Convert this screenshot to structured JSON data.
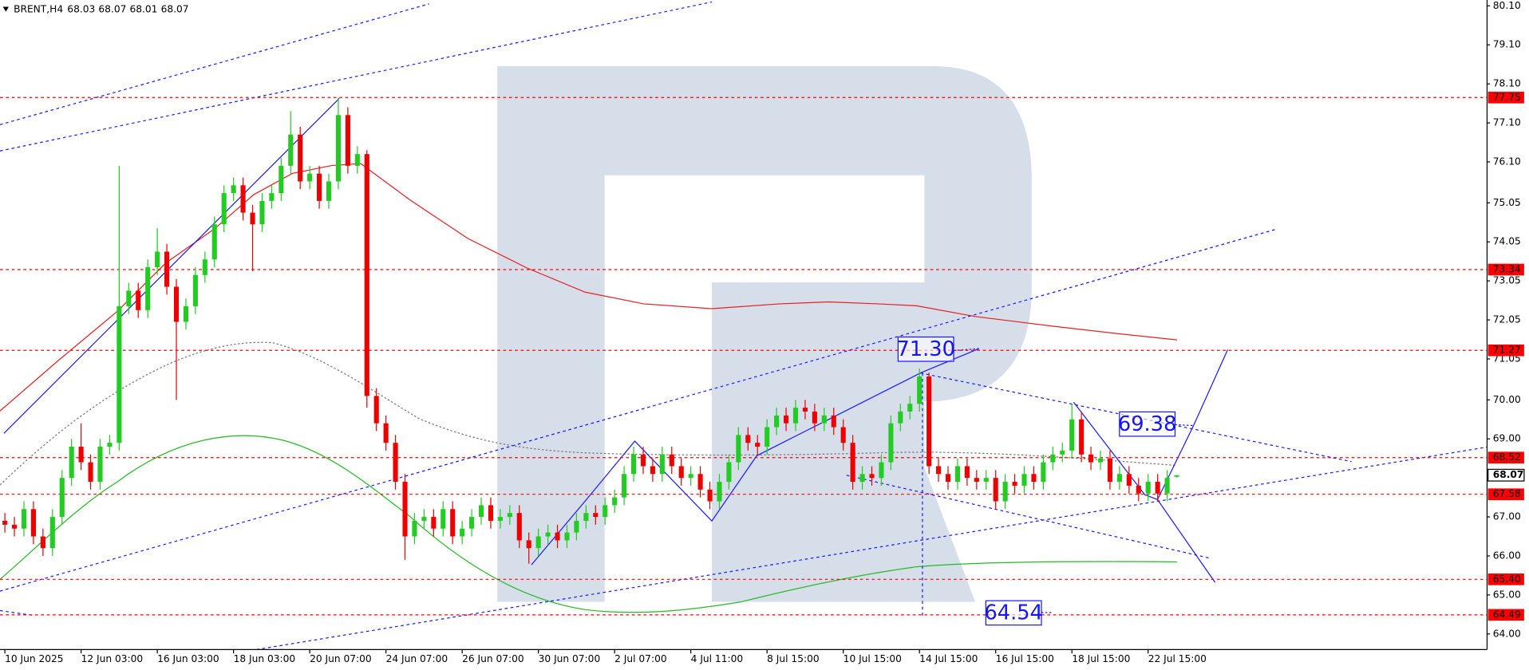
{
  "chart_data": {
    "type": "candlestick",
    "symbol": "BRENT,H4",
    "categories": [
      "10 Jun 2025",
      null,
      null,
      null,
      null,
      null,
      null,
      null,
      "12 Jun 03:00",
      null,
      null,
      null,
      null,
      null,
      null,
      null,
      "16 Jun 03:00",
      null,
      null,
      null,
      null,
      null,
      null,
      null,
      "18 Jun 03:00",
      null,
      null,
      null,
      null,
      null,
      null,
      null,
      "20 Jun 07:00",
      null,
      null,
      null,
      null,
      null,
      null,
      null,
      "24 Jun 07:00",
      null,
      null,
      null,
      null,
      null,
      null,
      null,
      "26 Jun 07:00",
      null,
      null,
      null,
      null,
      null,
      null,
      null,
      "30 Jun 07:00",
      null,
      null,
      null,
      null,
      null,
      null,
      null,
      "2 Jul 07:00",
      null,
      null,
      null,
      null,
      null,
      null,
      null,
      "4 Jul 11:00",
      null,
      null,
      null,
      null,
      null,
      null,
      null,
      "8 Jul 15:00",
      null,
      null,
      null,
      null,
      null,
      null,
      null,
      "10 Jul 15:00",
      null,
      null,
      null,
      null,
      null,
      null,
      null,
      "14 Jul 15:00",
      null,
      null,
      null,
      null,
      null,
      null,
      null,
      "16 Jul 15:00",
      null,
      null,
      null,
      null,
      null,
      null,
      null,
      "18 Jul 15:00",
      null,
      null,
      null,
      null,
      null,
      null,
      null,
      "22 Jul 15:00",
      null,
      null,
      null
    ],
    "open": [
      66.9,
      66.8,
      66.7,
      67.2,
      66.5,
      66.2,
      67.0,
      68.0,
      68.8,
      68.4,
      67.9,
      68.8,
      68.9,
      72.4,
      72.8,
      72.3,
      73.4,
      73.8,
      72.9,
      72.0,
      72.4,
      73.2,
      73.6,
      74.5,
      75.3,
      75.5,
      74.8,
      74.5,
      75.1,
      75.3,
      76.0,
      76.8,
      75.6,
      75.8,
      75.1,
      75.6,
      77.3,
      76.0,
      76.3,
      70.1,
      69.4,
      68.9,
      67.9,
      66.5,
      66.9,
      67.0,
      66.7,
      67.2,
      66.5,
      66.7,
      67.0,
      67.3,
      66.9,
      67.0,
      67.1,
      66.4,
      66.2,
      66.5,
      66.6,
      66.4,
      66.6,
      66.9,
      67.1,
      67.0,
      67.3,
      67.5,
      68.1,
      68.6,
      68.3,
      68.1,
      68.6,
      68.3,
      68.0,
      68.1,
      67.7,
      67.4,
      67.9,
      68.4,
      69.1,
      68.9,
      68.8,
      69.3,
      69.6,
      69.4,
      69.8,
      69.7,
      69.4,
      69.6,
      69.3,
      68.9,
      67.9,
      68.1,
      68.0,
      68.4,
      69.4,
      69.7,
      69.9,
      70.6,
      68.3,
      68.1,
      67.9,
      68.3,
      68.0,
      67.9,
      68.0,
      67.4,
      67.9,
      67.8,
      68.1,
      67.9,
      68.4,
      68.6,
      68.7,
      69.5,
      68.6,
      68.4,
      68.5,
      67.9,
      68.1,
      67.8,
      67.6,
      67.9,
      67.6,
      68.03
    ],
    "high": [
      67.1,
      67.0,
      67.4,
      67.4,
      66.7,
      67.2,
      68.2,
      69.0,
      69.4,
      68.6,
      69.0,
      69.1,
      76.0,
      73.0,
      73.0,
      73.6,
      74.4,
      74.0,
      73.1,
      72.6,
      73.4,
      73.8,
      74.7,
      75.5,
      75.7,
      75.7,
      75.0,
      75.3,
      75.5,
      76.2,
      77.4,
      77.0,
      76.0,
      76.0,
      75.8,
      77.75,
      77.5,
      76.5,
      76.4,
      70.3,
      69.6,
      69.1,
      68.1,
      67.1,
      67.2,
      67.2,
      67.4,
      67.4,
      66.9,
      67.2,
      67.5,
      67.5,
      67.2,
      67.3,
      67.3,
      66.6,
      66.7,
      66.8,
      66.8,
      66.8,
      67.1,
      67.3,
      67.3,
      67.5,
      67.7,
      68.3,
      68.8,
      68.8,
      68.5,
      68.8,
      68.8,
      68.5,
      68.3,
      68.3,
      67.9,
      68.1,
      68.6,
      69.3,
      69.3,
      69.1,
      69.5,
      69.8,
      69.8,
      70.0,
      70.0,
      69.9,
      69.8,
      69.8,
      69.5,
      69.1,
      68.3,
      68.3,
      68.6,
      69.6,
      69.9,
      70.1,
      70.8,
      70.7,
      68.5,
      68.3,
      68.5,
      68.5,
      68.2,
      68.2,
      68.2,
      68.1,
      68.1,
      68.3,
      68.3,
      68.6,
      68.8,
      68.9,
      69.9,
      69.7,
      68.8,
      68.7,
      68.7,
      68.3,
      68.3,
      68.0,
      68.1,
      68.1,
      68.2,
      68.07
    ],
    "low": [
      66.6,
      66.5,
      66.5,
      66.3,
      66.0,
      66.0,
      66.8,
      67.8,
      68.2,
      67.7,
      67.7,
      68.6,
      68.7,
      72.2,
      72.1,
      72.1,
      73.2,
      72.7,
      70.0,
      71.8,
      72.2,
      73.0,
      73.4,
      74.3,
      75.1,
      74.6,
      73.3,
      74.3,
      74.9,
      75.1,
      75.8,
      75.4,
      75.4,
      74.9,
      74.9,
      75.4,
      75.8,
      75.8,
      69.8,
      69.2,
      68.7,
      67.7,
      65.9,
      66.3,
      66.7,
      66.5,
      66.5,
      66.3,
      66.3,
      66.5,
      66.8,
      66.7,
      66.7,
      66.8,
      66.2,
      65.8,
      66.0,
      66.3,
      66.2,
      66.2,
      66.4,
      66.7,
      66.8,
      66.8,
      67.1,
      67.3,
      67.9,
      68.1,
      67.9,
      67.9,
      68.1,
      67.8,
      67.8,
      67.5,
      67.2,
      67.2,
      67.7,
      68.2,
      68.7,
      68.6,
      68.6,
      69.1,
      69.2,
      69.2,
      69.5,
      69.2,
      69.2,
      69.1,
      68.7,
      67.7,
      67.7,
      67.8,
      67.8,
      68.2,
      69.2,
      69.5,
      69.7,
      68.1,
      67.9,
      67.7,
      67.7,
      67.8,
      67.7,
      67.7,
      67.2,
      67.2,
      67.6,
      67.6,
      67.7,
      67.7,
      68.2,
      68.4,
      68.5,
      68.4,
      68.2,
      68.2,
      67.7,
      67.7,
      67.6,
      67.4,
      67.4,
      67.4,
      67.4,
      68.01
    ],
    "close": [
      66.8,
      66.7,
      67.2,
      66.5,
      66.2,
      67.0,
      68.0,
      68.8,
      68.4,
      67.9,
      68.8,
      68.9,
      72.4,
      72.8,
      72.3,
      73.4,
      73.8,
      72.9,
      72.0,
      72.4,
      73.2,
      73.6,
      74.5,
      75.3,
      75.5,
      74.8,
      74.5,
      75.1,
      75.3,
      76.0,
      76.8,
      75.6,
      75.8,
      75.1,
      75.6,
      77.3,
      76.0,
      76.3,
      70.1,
      69.4,
      68.9,
      67.9,
      66.5,
      66.9,
      67.0,
      66.7,
      67.2,
      66.5,
      66.7,
      67.0,
      67.3,
      66.9,
      67.0,
      67.1,
      66.4,
      66.2,
      66.5,
      66.6,
      66.4,
      66.6,
      66.9,
      67.1,
      67.0,
      67.3,
      67.5,
      68.1,
      68.6,
      68.3,
      68.1,
      68.6,
      68.3,
      68.0,
      68.1,
      67.7,
      67.4,
      67.9,
      68.4,
      69.1,
      68.9,
      68.8,
      69.3,
      69.6,
      69.4,
      69.8,
      69.7,
      69.4,
      69.6,
      69.3,
      68.9,
      67.9,
      68.1,
      68.0,
      68.4,
      69.4,
      69.7,
      69.9,
      70.6,
      68.3,
      68.1,
      67.9,
      68.3,
      68.0,
      67.9,
      68.0,
      67.4,
      67.9,
      67.8,
      68.1,
      67.9,
      68.4,
      68.6,
      68.7,
      69.5,
      68.6,
      68.4,
      68.5,
      67.9,
      68.1,
      67.8,
      67.6,
      67.9,
      67.6,
      68.0,
      68.07
    ],
    "up_color": "#22cc22",
    "down_color": "#ee0000",
    "ylim": [
      63.6,
      80.25
    ],
    "yticks": [
      {
        "value": 80.1,
        "label": "80.10"
      },
      {
        "value": 79.1,
        "label": "79.10"
      },
      {
        "value": 78.1,
        "label": "78.10"
      },
      {
        "value": 77.1,
        "label": "77.10"
      },
      {
        "value": 76.1,
        "label": "76.10"
      },
      75.05,
      74.05,
      73.05,
      72.05,
      71.05,
      {
        "value": 70,
        "label": "70.00"
      },
      {
        "value": 69,
        "label": "69.00"
      },
      {
        "value": 68,
        "label": "68.00"
      },
      {
        "value": 67,
        "label": "67.00"
      },
      {
        "value": 66,
        "label": "66.00"
      },
      {
        "value": 65,
        "label": "65.00"
      },
      {
        "value": 64,
        "label": "64.00"
      }
    ],
    "levels": {
      "values": [
        77.75,
        73.34,
        71.27,
        68.52,
        67.58,
        65.4,
        64.49
      ],
      "value_labels": [
        "77.75",
        "73.34",
        "71.27",
        "68.52",
        "67.58",
        "65.40",
        "64.49"
      ],
      "color": "#ff0000"
    },
    "annotations": [
      {
        "value": 71.3,
        "label": "71.30"
      },
      {
        "value": 69.38,
        "label": "69.38"
      },
      {
        "value": 64.54,
        "label": "64.54"
      }
    ]
  }
}
